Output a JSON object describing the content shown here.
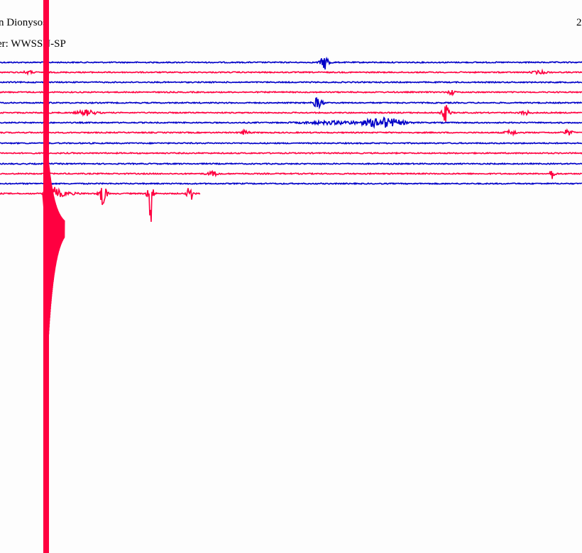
{
  "header": {
    "station": "n Dionysos",
    "filter": "er: WWSSN-SP",
    "corner": "2"
  }
}
